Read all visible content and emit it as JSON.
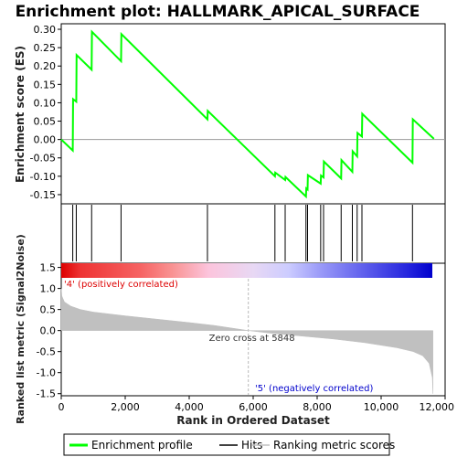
{
  "chart_data": {
    "type": "line",
    "title": "Enrichment plot: HALLMARK_APICAL_SURFACE",
    "x_axis": {
      "label": "Rank in Ordered Dataset",
      "range": [
        0,
        12000
      ],
      "ticks": [
        0,
        2000,
        4000,
        6000,
        8000,
        10000,
        12000
      ],
      "tick_labels": [
        "0",
        "2,000",
        "4,000",
        "6,000",
        "8,000",
        "10,000",
        "12,000"
      ]
    },
    "enrichment_panel": {
      "ylabel": "Enrichment score (ES)",
      "ylim": [
        -0.175,
        0.315
      ],
      "ticks": [
        -0.15,
        -0.1,
        -0.05,
        0.0,
        0.05,
        0.1,
        0.15,
        0.2,
        0.25,
        0.3
      ],
      "tick_labels": [
        "-0.15",
        "-0.10",
        "-0.05",
        "0.00",
        "0.05",
        "0.10",
        "0.15",
        "0.20",
        "0.25",
        "0.30"
      ],
      "series": [
        {
          "name": "Enrichment profile",
          "color": "#00ff00",
          "x": [
            0,
            360,
            370,
            470,
            480,
            950,
            960,
            1870,
            1880,
            4570,
            4580,
            6680,
            6690,
            7000,
            7010,
            7650,
            7660,
            7700,
            7710,
            8110,
            8120,
            8200,
            8210,
            8750,
            8760,
            9100,
            9110,
            9250,
            9260,
            9400,
            9410,
            10980,
            10990,
            11650
          ],
          "y": [
            0.0,
            -0.03,
            0.11,
            0.103,
            0.23,
            0.19,
            0.293,
            0.213,
            0.287,
            0.055,
            0.078,
            -0.1,
            -0.09,
            -0.11,
            -0.102,
            -0.155,
            -0.133,
            -0.136,
            -0.097,
            -0.12,
            -0.098,
            -0.103,
            -0.06,
            -0.106,
            -0.056,
            -0.088,
            -0.032,
            -0.046,
            0.018,
            0.008,
            0.07,
            -0.063,
            0.055,
            0.002
          ]
        }
      ]
    },
    "hits_panel": {
      "series_name": "Hits",
      "hit_ranks": [
        360,
        470,
        950,
        1870,
        4570,
        6680,
        7000,
        7650,
        7700,
        8110,
        8200,
        8750,
        9100,
        9250,
        9400,
        10980
      ]
    },
    "gradient_bar": {
      "colors": [
        "#dd0000",
        "#ee3333",
        "#f66464",
        "#f99494",
        "#fcc4dc",
        "#e8d8f4",
        "#ccccff",
        "#9a9af8",
        "#6666ee",
        "#2222dd",
        "#0000cc"
      ],
      "stops": [
        0,
        600,
        2500,
        3500,
        4600,
        6000,
        7100,
        8100,
        9300,
        10900,
        11600
      ]
    },
    "ranked_metric_panel": {
      "ylabel": "Ranked list metric (Signal2Noise)",
      "series_name": "Ranking metric scores",
      "ylim": [
        -1.55,
        1.6
      ],
      "ticks": [
        -1.5,
        -1.0,
        -0.5,
        0.0,
        0.5,
        1.0,
        1.5
      ],
      "tick_labels": [
        "-1.5",
        "-1.0",
        "-0.5",
        "0.0",
        "0.5",
        "1.0",
        "1.5"
      ],
      "fill_color": "#c0c0c0",
      "x": [
        0,
        20,
        100,
        300,
        600,
        1000,
        2000,
        3000,
        4000,
        4800,
        5848,
        6500,
        7500,
        8500,
        9500,
        10500,
        11000,
        11300,
        11500,
        11600,
        11620
      ],
      "y": [
        1.0,
        0.82,
        0.68,
        0.58,
        0.5,
        0.44,
        0.35,
        0.27,
        0.19,
        0.12,
        0.0,
        -0.06,
        -0.13,
        -0.2,
        -0.29,
        -0.41,
        -0.5,
        -0.6,
        -0.78,
        -1.12,
        -1.5
      ],
      "zero_cross_rank": 5848,
      "zero_cross_label": "Zero cross at 5848",
      "positive_label": "'4' (positively correlated)",
      "negative_label": "'5' (negatively correlated)"
    },
    "legend": {
      "position": "bottom",
      "items": [
        {
          "label": "Enrichment profile",
          "color": "#00ff00"
        },
        {
          "label": "Hits",
          "color": "#000000"
        },
        {
          "label": "Ranking metric scores",
          "color": "#c0c0c0"
        }
      ]
    }
  }
}
